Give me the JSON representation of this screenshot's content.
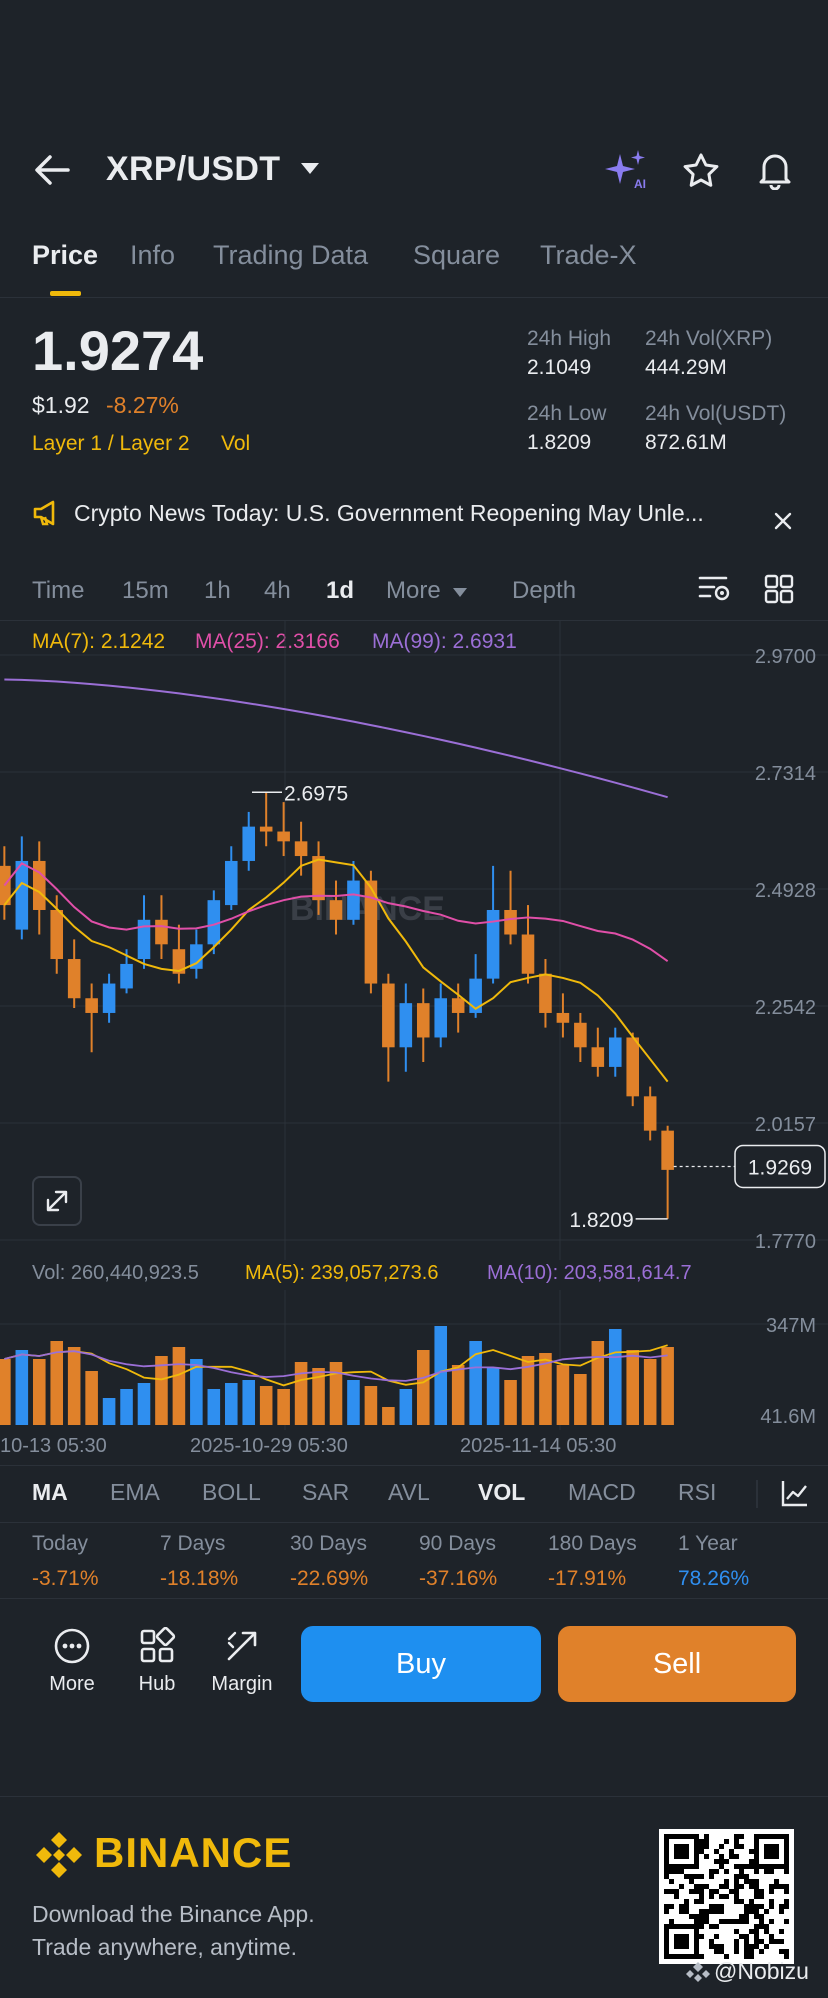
{
  "header": {
    "pair": "XRP/USDT",
    "icons": [
      "back-arrow-icon",
      "chevron-down-icon",
      "ai-sparkle-icon",
      "star-icon",
      "bell-icon"
    ]
  },
  "tabs": [
    {
      "label": "Price",
      "active": true
    },
    {
      "label": "Info"
    },
    {
      "label": "Trading Data"
    },
    {
      "label": "Square"
    },
    {
      "label": "Trade-X"
    }
  ],
  "price": {
    "last": "1.9274",
    "usd": "$1.92",
    "change": "-8.27%",
    "tags": [
      "Layer 1 / Layer 2",
      "Vol"
    ],
    "high_label": "24h High",
    "high": "2.1049",
    "low_label": "24h Low",
    "low": "1.8209",
    "vol_xrp_label": "24h Vol(XRP)",
    "vol_xrp": "444.29M",
    "vol_usdt_label": "24h Vol(USDT)",
    "vol_usdt": "872.61M"
  },
  "news": {
    "text": "Crypto News Today: U.S. Government Reopening May Unle..."
  },
  "timeframes": [
    {
      "label": "Time"
    },
    {
      "label": "15m"
    },
    {
      "label": "1h"
    },
    {
      "label": "4h"
    },
    {
      "label": "1d",
      "active": true
    },
    {
      "label": "More"
    },
    {
      "label": "Depth"
    }
  ],
  "ma": {
    "ma7": "MA(7): 2.1242",
    "ma25": "MA(25): 2.3166",
    "ma99": "MA(99): 2.6931"
  },
  "chart_data": {
    "type": "candlestick",
    "y_ticks": [
      "2.9700",
      "2.7314",
      "2.4928",
      "2.2542",
      "2.0157",
      "1.7770"
    ],
    "ylim": [
      1.777,
      2.97
    ],
    "high_marker": "2.6975",
    "low_marker": "1.8209",
    "current_price": "1.9269",
    "watermark": "BINANCE",
    "colors": {
      "up": "#2f8ff0",
      "down": "#e0812a",
      "ma7": "#f0b90b",
      "ma25": "#e04fa8",
      "ma99": "#9b6fd6"
    },
    "candles": [
      [
        2.54,
        2.46,
        2.58,
        2.43
      ],
      [
        2.41,
        2.55,
        2.6,
        2.39
      ],
      [
        2.55,
        2.45,
        2.59,
        2.4
      ],
      [
        2.45,
        2.35,
        2.48,
        2.32
      ],
      [
        2.35,
        2.27,
        2.39,
        2.25
      ],
      [
        2.27,
        2.24,
        2.3,
        2.16
      ],
      [
        2.24,
        2.3,
        2.32,
        2.22
      ],
      [
        2.29,
        2.34,
        2.37,
        2.28
      ],
      [
        2.35,
        2.43,
        2.48,
        2.33
      ],
      [
        2.43,
        2.38,
        2.48,
        2.35
      ],
      [
        2.37,
        2.32,
        2.42,
        2.3
      ],
      [
        2.33,
        2.38,
        2.41,
        2.31
      ],
      [
        2.38,
        2.47,
        2.49,
        2.36
      ],
      [
        2.46,
        2.55,
        2.58,
        2.45
      ],
      [
        2.55,
        2.62,
        2.65,
        2.53
      ],
      [
        2.62,
        2.61,
        2.69,
        2.58
      ],
      [
        2.61,
        2.59,
        2.67,
        2.56
      ],
      [
        2.59,
        2.56,
        2.63,
        2.52
      ],
      [
        2.56,
        2.47,
        2.59,
        2.44
      ],
      [
        2.47,
        2.43,
        2.51,
        2.4
      ],
      [
        2.43,
        2.51,
        2.55,
        2.42
      ],
      [
        2.51,
        2.3,
        2.53,
        2.28
      ],
      [
        2.3,
        2.17,
        2.32,
        2.1
      ],
      [
        2.17,
        2.26,
        2.3,
        2.12
      ],
      [
        2.26,
        2.19,
        2.29,
        2.14
      ],
      [
        2.19,
        2.27,
        2.3,
        2.17
      ],
      [
        2.27,
        2.24,
        2.3,
        2.2
      ],
      [
        2.24,
        2.31,
        2.36,
        2.23
      ],
      [
        2.31,
        2.45,
        2.54,
        2.3
      ],
      [
        2.45,
        2.4,
        2.53,
        2.38
      ],
      [
        2.4,
        2.32,
        2.46,
        2.3
      ],
      [
        2.32,
        2.24,
        2.35,
        2.21
      ],
      [
        2.24,
        2.22,
        2.28,
        2.19
      ],
      [
        2.22,
        2.17,
        2.24,
        2.14
      ],
      [
        2.17,
        2.13,
        2.21,
        2.11
      ],
      [
        2.13,
        2.19,
        2.21,
        2.11
      ],
      [
        2.19,
        2.07,
        2.2,
        2.05
      ],
      [
        2.07,
        2.0,
        2.09,
        1.98
      ],
      [
        2.0,
        1.92,
        2.01,
        1.82
      ]
    ],
    "volume_ticks": [
      "347M",
      "41.6M"
    ],
    "volume_label": "Vol: 260,440,923.5",
    "vol_ma5": "MA(5): 239,057,273.6",
    "vol_ma10": "MA(10): 203,581,614.7",
    "volumes": [
      220,
      250,
      220,
      280,
      260,
      180,
      90,
      120,
      140,
      230,
      260,
      220,
      120,
      140,
      150,
      130,
      120,
      210,
      190,
      210,
      150,
      130,
      60,
      120,
      250,
      330,
      200,
      280,
      190,
      150,
      230,
      240,
      200,
      170,
      280,
      320,
      250,
      220,
      260
    ],
    "x_labels": [
      "10-13 05:30",
      "2025-10-29 05:30",
      "2025-11-14 05:30"
    ]
  },
  "indicators": [
    {
      "label": "MA",
      "active": true
    },
    {
      "label": "EMA"
    },
    {
      "label": "BOLL"
    },
    {
      "label": "SAR"
    },
    {
      "label": "AVL"
    },
    {
      "label": "VOL",
      "active": true
    },
    {
      "label": "MACD"
    },
    {
      "label": "RSI"
    }
  ],
  "performance": [
    {
      "label": "Today",
      "value": "-3.71%"
    },
    {
      "label": "7 Days",
      "value": "-18.18%"
    },
    {
      "label": "30 Days",
      "value": "-22.69%"
    },
    {
      "label": "90 Days",
      "value": "-37.16%"
    },
    {
      "label": "180 Days",
      "value": "-17.91%"
    },
    {
      "label": "1 Year",
      "value": "78.26%"
    }
  ],
  "actions": {
    "more": "More",
    "hub": "Hub",
    "margin": "Margin",
    "buy": "Buy",
    "sell": "Sell"
  },
  "footer": {
    "brand": "BINANCE",
    "line1": "Download the Binance App.",
    "line2": "Trade anywhere, anytime.",
    "credit": "@Nobizu"
  }
}
